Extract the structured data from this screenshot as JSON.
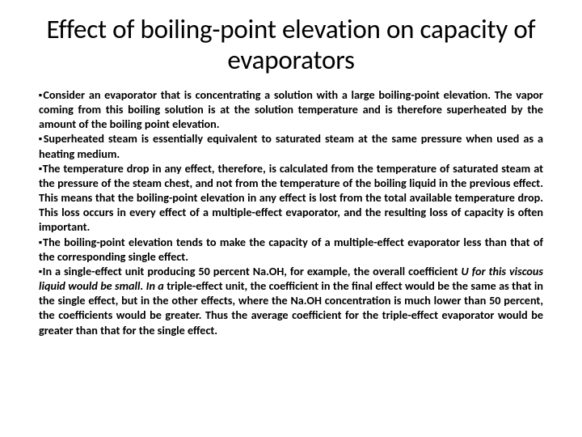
{
  "title": "Effect of boiling-point elevation on capacity of evaporators",
  "bullets": [
    "Consider an evaporator that is concentrating a solution with a large boiling-point elevation. The vapor coming from this boiling solution is at the solution temperature and is therefore superheated by the amount of the boiling point elevation.",
    "Superheated steam is essentially equivalent to saturated steam at the same pressure when used as a heating medium.",
    "The temperature drop in any effect, therefore, is calculated from the temperature of saturated steam at the pressure of the steam chest, and not from the temperature of the boiling liquid in the previous effect. This means that the boiling-point elevation in any effect is lost from the total available temperature drop. This loss occurs in every effect of a multiple-effect evaporator, and the resulting loss of capacity is often important.",
    "The boiling-point elevation tends to make the capacity of a multiple-effect evaporator less than that of the corresponding single effect.",
    "In a single-effect unit producing 50 percent Na.OH, for example, the overall coefficient <em>U for this viscous liquid would be small. In a</em> triple-effect unit, the coefficient in the final effect would be the same as that in the single effect, but in the other effects, where the Na.OH concentration is much lower than 50 percent, the coefficients would be greater. Thus the average coefficient for the triple-effect evaporator would be greater than that for the single effect."
  ],
  "styles": {
    "background_color": "#ffffff",
    "text_color": "#000000",
    "title_fontsize": 33,
    "body_fontsize": 14.2,
    "font_family": "Calibri",
    "bullet_marker": "▪",
    "title_weight": 400,
    "body_weight": 700
  }
}
